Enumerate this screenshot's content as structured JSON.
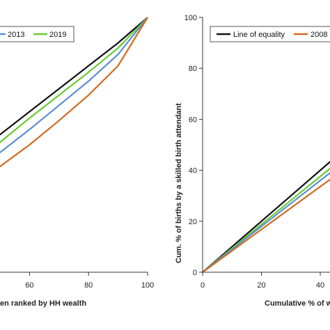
{
  "chart_data": [
    {
      "type": "line",
      "title": "",
      "xlabel": "en ranked by HH wealth",
      "ylabel": "",
      "xlim": [
        30,
        100
      ],
      "ylim": [
        0,
        100
      ],
      "xticks": [
        60,
        80,
        100
      ],
      "legend": {
        "position": "top-left",
        "entries": [
          "2013",
          "2019"
        ]
      },
      "series": [
        {
          "name": "",
          "color": "#111111",
          "x": [
            30,
            40,
            50,
            60,
            70,
            80,
            90,
            100
          ],
          "y": [
            36,
            45,
            54,
            63,
            72,
            81,
            90,
            100
          ]
        },
        {
          "name": "2019",
          "color": "#66cc33",
          "x": [
            30,
            40,
            50,
            60,
            70,
            80,
            90,
            100
          ],
          "y": [
            33,
            42,
            51,
            60.5,
            69.5,
            78.5,
            88,
            100
          ]
        },
        {
          "name": "2013",
          "color": "#5b8fd6",
          "x": [
            30,
            40,
            50,
            60,
            70,
            80,
            90,
            100
          ],
          "y": [
            29.5,
            38,
            47,
            56,
            65.5,
            75,
            85.5,
            100
          ]
        },
        {
          "name": "",
          "color": "#d2691e",
          "x": [
            30,
            40,
            50,
            60,
            70,
            80,
            90,
            100
          ],
          "y": [
            25.5,
            33.5,
            41.5,
            50,
            59.5,
            69.5,
            81,
            100
          ]
        }
      ]
    },
    {
      "type": "line",
      "title": "",
      "xlabel": "Cumulative % of w",
      "ylabel": "Cum. % of births by a skilled birth attendant",
      "xlim": [
        0,
        50
      ],
      "ylim": [
        0,
        100
      ],
      "xticks": [
        0,
        20,
        40
      ],
      "yticks": [
        0,
        20,
        40,
        60,
        80,
        100
      ],
      "legend": {
        "position": "top",
        "entries": [
          "Line of equality",
          "2008"
        ]
      },
      "series": [
        {
          "name": "Line of equality",
          "color": "#111111",
          "x": [
            0,
            50
          ],
          "y": [
            0,
            50
          ]
        },
        {
          "name": "",
          "color": "#66cc33",
          "x": [
            0,
            50
          ],
          "y": [
            0,
            47
          ]
        },
        {
          "name": "",
          "color": "#5b8fd6",
          "x": [
            0,
            50
          ],
          "y": [
            0,
            45
          ]
        },
        {
          "name": "2008",
          "color": "#d2691e",
          "x": [
            0,
            50
          ],
          "y": [
            0,
            42
          ]
        }
      ]
    }
  ]
}
